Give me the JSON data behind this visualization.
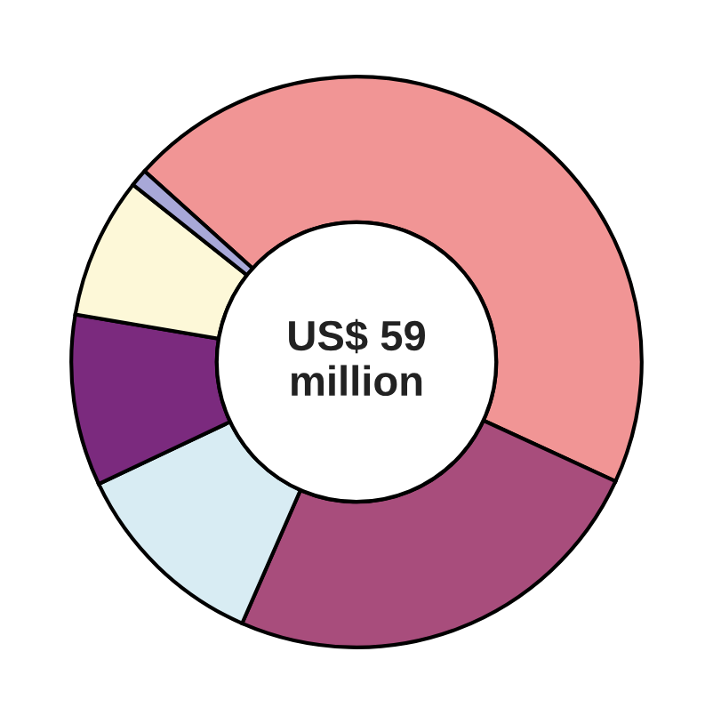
{
  "chart_data": {
    "type": "donut",
    "categories": [
      null,
      null,
      null,
      null,
      null,
      null
    ],
    "values": [
      45.2,
      24.7,
      11.4,
      9.7,
      8.0,
      1.0
    ],
    "colors": [
      "#f19595",
      "#a84d7c",
      "#d8ecf3",
      "#7b2a7e",
      "#fdf8d8",
      "#a8a8d8"
    ],
    "annotations": [
      "US$ 59\nmillion"
    ],
    "legend": false
  }
}
